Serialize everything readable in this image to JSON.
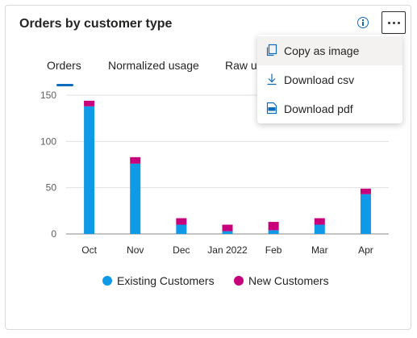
{
  "card": {
    "title": "Orders by customer type"
  },
  "header_icons": {
    "info": "info-icon",
    "more": "more-options-icon"
  },
  "tabs": [
    {
      "label": "Orders",
      "selected": true
    },
    {
      "label": "Normalized usage",
      "selected": false
    },
    {
      "label": "Raw us",
      "selected": false
    }
  ],
  "menu": {
    "items": [
      {
        "label": "Copy as image",
        "icon": "copy-icon"
      },
      {
        "label": "Download csv",
        "icon": "download-icon"
      },
      {
        "label": "Download pdf",
        "icon": "pdf-icon"
      }
    ]
  },
  "legend": {
    "items": [
      {
        "label": "Existing Customers",
        "color": "#0e9ae6"
      },
      {
        "label": "New Customers",
        "color": "#c8007b"
      }
    ]
  },
  "chart_data": {
    "type": "bar",
    "stacked": true,
    "categories": [
      "Oct",
      "Nov",
      "Dec",
      "Jan 2022",
      "Feb",
      "Mar",
      "Apr"
    ],
    "series": [
      {
        "name": "Existing Customers",
        "color": "#0e9ae6",
        "values": [
          138,
          76,
          10,
          3,
          4,
          10,
          43
        ]
      },
      {
        "name": "New Customers",
        "color": "#c8007b",
        "values": [
          6,
          7,
          7,
          7,
          9,
          7,
          6
        ]
      }
    ],
    "yticks": [
      "0",
      "50",
      "100",
      "150"
    ],
    "ylim": [
      0,
      150
    ],
    "grid": true,
    "legend": "bottom"
  }
}
